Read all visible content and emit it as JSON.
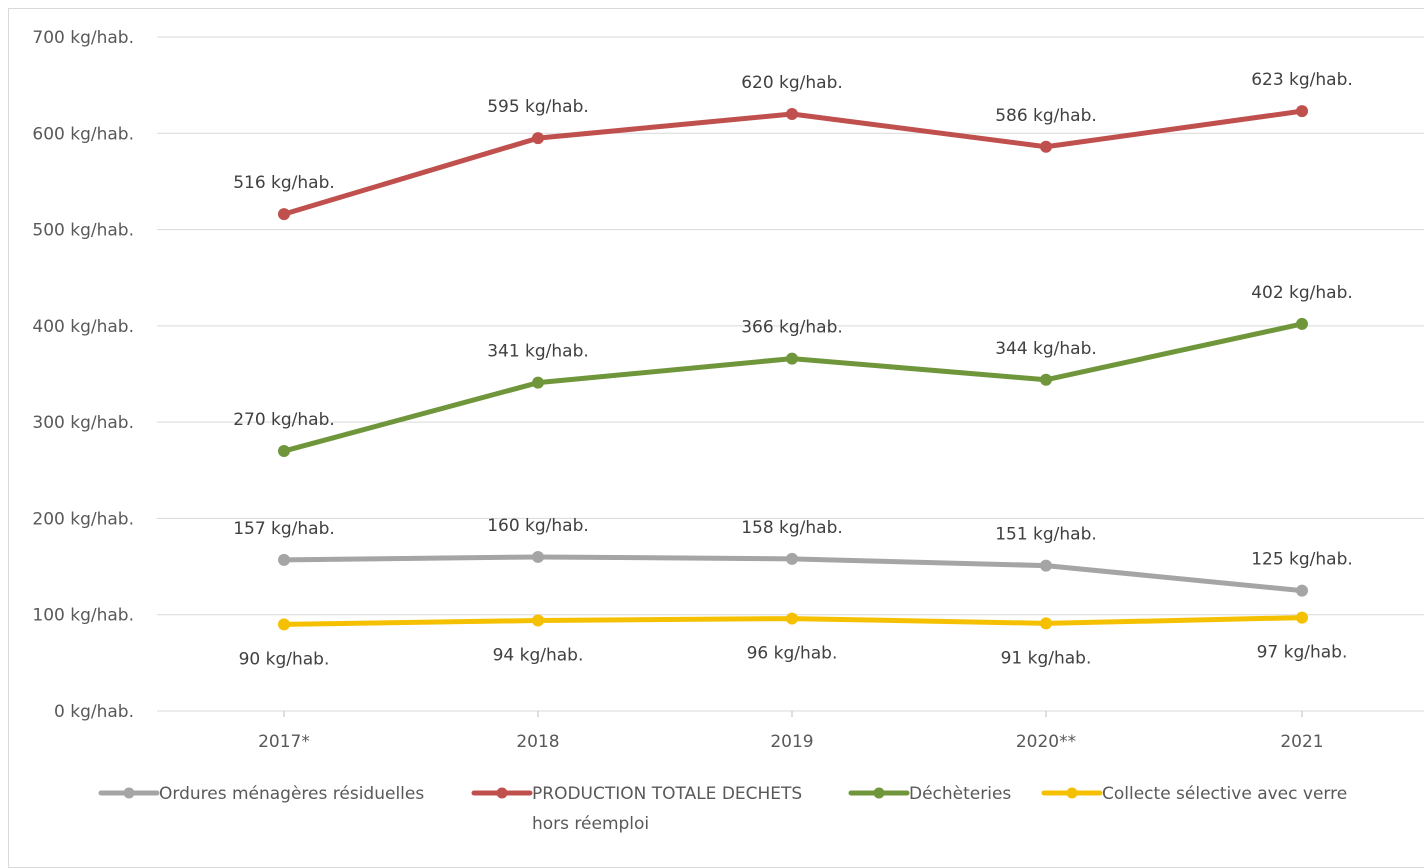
{
  "chart_data": {
    "type": "line",
    "title": "",
    "xlabel": "",
    "ylabel": "",
    "categories": [
      "2017*",
      "2018",
      "2019",
      "2020**",
      "2021"
    ],
    "ylim": [
      0,
      700
    ],
    "yticks": [
      0,
      100,
      200,
      300,
      400,
      500,
      600,
      700
    ],
    "ytick_labels": [
      "0 kg/hab.",
      "100 kg/hab.",
      "200 kg/hab.",
      "300 kg/hab.",
      "400 kg/hab.",
      "500 kg/hab.",
      "600 kg/hab.",
      "700 kg/hab."
    ],
    "grid": true,
    "legend_position": "bottom",
    "series": [
      {
        "key": "omr",
        "name": "Ordures ménagères résiduelles",
        "color": "#a5a5a5",
        "values": [
          157,
          160,
          158,
          151,
          125
        ],
        "labels": [
          "157 kg/hab.",
          "160 kg/hab.",
          "158 kg/hab.",
          "151 kg/hab.",
          "125 kg/hab."
        ],
        "label_position": "above"
      },
      {
        "key": "total",
        "name": "PRODUCTION TOTALE DECHETS hors réemploi",
        "name_lines": [
          "PRODUCTION TOTALE DECHETS",
          "hors réemploi"
        ],
        "color": "#c0504d",
        "values": [
          516,
          595,
          620,
          586,
          623
        ],
        "labels": [
          "516 kg/hab.",
          "595 kg/hab.",
          "620 kg/hab.",
          "586 kg/hab.",
          "623 kg/hab."
        ],
        "label_position": "above"
      },
      {
        "key": "decheteries",
        "name": "Déchèteries",
        "color": "#70963c",
        "values": [
          270,
          341,
          366,
          344,
          402
        ],
        "labels": [
          "270 kg/hab.",
          "341 kg/hab.",
          "366 kg/hab.",
          "344 kg/hab.",
          "402 kg/hab."
        ],
        "label_position": "above"
      },
      {
        "key": "collecte",
        "name": "Collecte sélective avec verre",
        "color": "#f5c000",
        "values": [
          90,
          94,
          96,
          91,
          97
        ],
        "labels": [
          "90 kg/hab.",
          "94 kg/hab.",
          "96 kg/hab.",
          "91 kg/hab.",
          "97 kg/hab."
        ],
        "label_position": "below"
      }
    ],
    "legend_order": [
      "omr",
      "total",
      "decheteries",
      "collecte"
    ]
  }
}
